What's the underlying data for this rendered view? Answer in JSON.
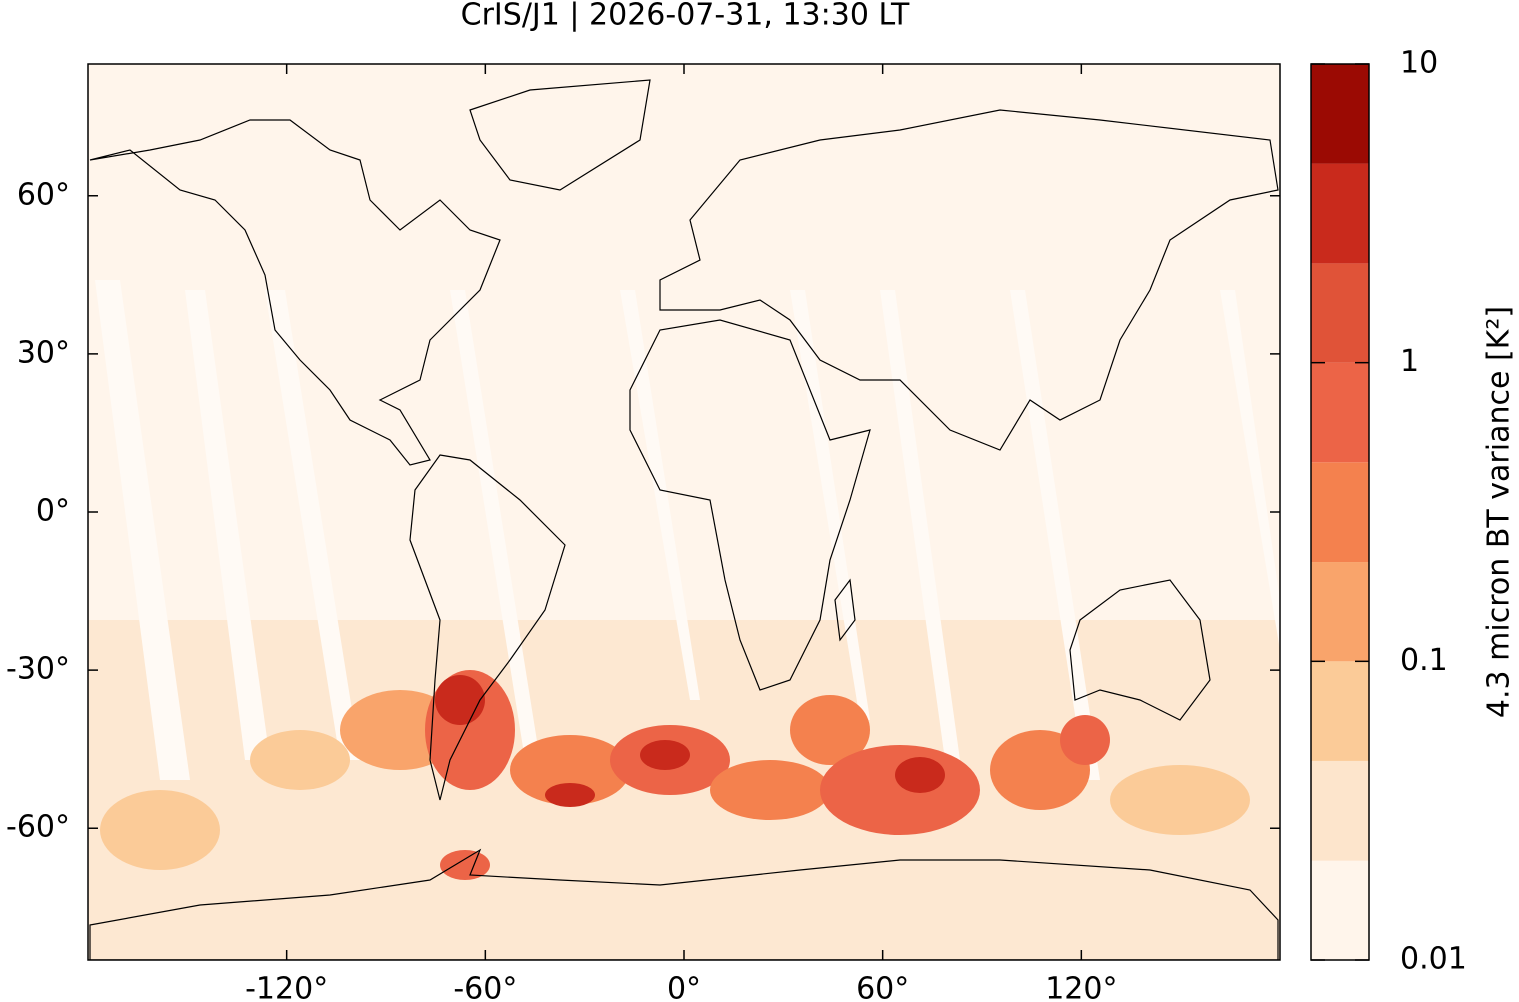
{
  "chart_data": {
    "type": "map",
    "title": "CrIS/J1 | 2026-07-31, 13:30 LT",
    "xlim": [
      -180,
      180
    ],
    "ylim": [
      -85,
      85
    ],
    "xticks": [
      {
        "value": -120,
        "label": "-120°"
      },
      {
        "value": -60,
        "label": "-60°"
      },
      {
        "value": 0,
        "label": "0°"
      },
      {
        "value": 60,
        "label": "60°"
      },
      {
        "value": 120,
        "label": "120°"
      }
    ],
    "yticks": [
      {
        "value": 60,
        "label": "60°"
      },
      {
        "value": 30,
        "label": "30°"
      },
      {
        "value": 0,
        "label": "0°"
      },
      {
        "value": -30,
        "label": "-30°"
      },
      {
        "value": -60,
        "label": "-60°"
      }
    ],
    "colorbar": {
      "label": "4.3 micron BT variance [K²]",
      "scale": "log",
      "lim": [
        0.01,
        10
      ],
      "ticks": [
        0.01,
        0.1,
        1,
        10
      ],
      "levels": [
        0.01,
        0.0215,
        0.0464,
        0.1,
        0.215,
        0.464,
        1,
        2.15,
        4.64,
        10
      ],
      "colors": [
        "#fff5eb",
        "#fde5cc",
        "#fbcb98",
        "#f9a46b",
        "#f4814e",
        "#ec6447",
        "#e05338",
        "#c92a1c",
        "#9b0a03"
      ]
    }
  }
}
